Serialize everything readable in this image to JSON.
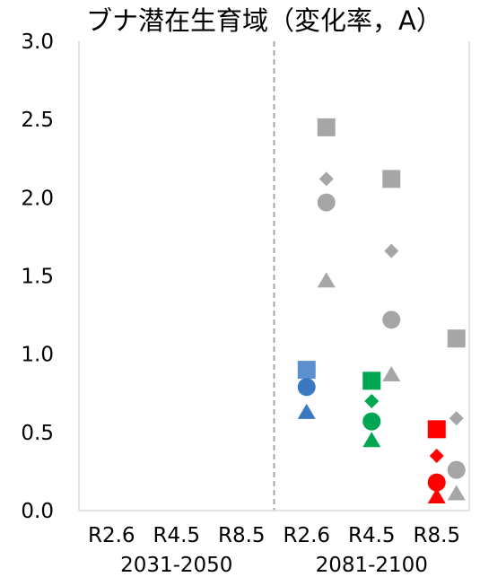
{
  "chart_data": {
    "type": "scatter",
    "title": "ブナ潜在生育域（変化率，A）",
    "xlabel": "",
    "ylabel": "",
    "ylim": [
      0,
      3.0
    ],
    "yticks": [
      "0.0",
      "0.5",
      "1.0",
      "1.5",
      "2.0",
      "2.5",
      "3.0"
    ],
    "grid": "vertical-only",
    "legend": "none",
    "categories": [
      "R2.6",
      "R4.5",
      "R8.5",
      "R2.6",
      "R4.5",
      "R8.5"
    ],
    "periods": [
      {
        "label": "2031-2050",
        "categories": [
          0,
          1,
          2
        ]
      },
      {
        "label": "2081-2100",
        "categories": [
          3,
          4,
          5
        ]
      }
    ],
    "colors": {
      "gray": "#a6a6a6",
      "blue": "#3a78c2",
      "blue_square": "#5b8fd0",
      "green": "#00a651",
      "red": "#ff0000",
      "gridline": "#d9d9d9",
      "separator": "#a6a6a6"
    },
    "marker_shapes": [
      "square",
      "diamond",
      "circle",
      "triangle"
    ],
    "series": [
      {
        "category_index": 3,
        "points": [
          {
            "marker": "square",
            "color": "gray",
            "offset": "right",
            "y": 2.45
          },
          {
            "marker": "diamond",
            "color": "gray",
            "offset": "right",
            "y": 2.12
          },
          {
            "marker": "circle",
            "color": "gray",
            "offset": "right",
            "y": 1.97
          },
          {
            "marker": "triangle",
            "color": "gray",
            "offset": "right",
            "y": 1.47
          },
          {
            "marker": "square",
            "color": "blue_square",
            "offset": "center",
            "y": 0.9
          },
          {
            "marker": "circle",
            "color": "blue",
            "offset": "center",
            "y": 0.79
          },
          {
            "marker": "triangle",
            "color": "blue",
            "offset": "center",
            "y": 0.63
          }
        ]
      },
      {
        "category_index": 4,
        "points": [
          {
            "marker": "square",
            "color": "gray",
            "offset": "right",
            "y": 2.12
          },
          {
            "marker": "diamond",
            "color": "gray",
            "offset": "right",
            "y": 1.66
          },
          {
            "marker": "circle",
            "color": "gray",
            "offset": "right",
            "y": 1.22
          },
          {
            "marker": "triangle",
            "color": "gray",
            "offset": "right",
            "y": 0.87
          },
          {
            "marker": "square",
            "color": "green",
            "offset": "center",
            "y": 0.83
          },
          {
            "marker": "diamond",
            "color": "green",
            "offset": "center",
            "y": 0.7
          },
          {
            "marker": "circle",
            "color": "green",
            "offset": "center",
            "y": 0.57
          },
          {
            "marker": "triangle",
            "color": "green",
            "offset": "center",
            "y": 0.45
          }
        ]
      },
      {
        "category_index": 5,
        "points": [
          {
            "marker": "square",
            "color": "gray",
            "offset": "right",
            "y": 1.1
          },
          {
            "marker": "diamond",
            "color": "gray",
            "offset": "right",
            "y": 0.59
          },
          {
            "marker": "circle",
            "color": "gray",
            "offset": "right",
            "y": 0.26
          },
          {
            "marker": "triangle",
            "color": "gray",
            "offset": "right",
            "y": 0.11
          },
          {
            "marker": "square",
            "color": "red",
            "offset": "center",
            "y": 0.52
          },
          {
            "marker": "diamond",
            "color": "red",
            "offset": "center",
            "y": 0.35
          },
          {
            "marker": "circle",
            "color": "red",
            "offset": "center",
            "y": 0.18
          },
          {
            "marker": "triangle",
            "color": "red",
            "offset": "center",
            "y": 0.09
          }
        ]
      }
    ]
  }
}
